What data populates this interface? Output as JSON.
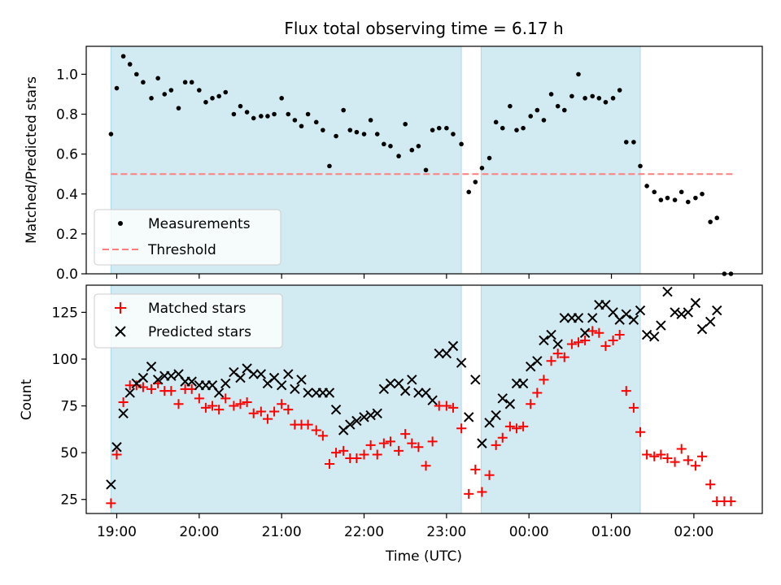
{
  "chart_data": [
    {
      "type": "scatter",
      "title": "Flux total observing time = 6.17 h",
      "xlabel": "",
      "ylabel": "Matched/Predicted stars",
      "ylim": [
        0,
        1.14
      ],
      "yticks": [
        "0.0",
        "0.2",
        "0.4",
        "0.6",
        "0.8",
        "1.0"
      ],
      "ytick_values": [
        0.0,
        0.2,
        0.4,
        0.6,
        0.8,
        1.0
      ],
      "xrange_hours": [
        18.63,
        26.83
      ],
      "shaded_spans_hours": [
        [
          18.93,
          23.18
        ],
        [
          23.42,
          25.35
        ]
      ],
      "threshold": 0.5,
      "threshold_range_hours": [
        18.93,
        26.47
      ],
      "legend": {
        "placement": "lower-left",
        "items": [
          "Measurements",
          "Threshold"
        ]
      },
      "colors": {
        "shade": "#add8e6",
        "measurements": "#000000",
        "threshold": "#ff7f7f"
      },
      "x": [
        18.93,
        19.0,
        19.08,
        19.16,
        19.24,
        19.32,
        19.42,
        19.5,
        19.58,
        19.66,
        19.75,
        19.83,
        19.91,
        20.0,
        20.08,
        20.16,
        20.24,
        20.32,
        20.42,
        20.5,
        20.58,
        20.66,
        20.75,
        20.83,
        20.91,
        21.0,
        21.08,
        21.16,
        21.24,
        21.32,
        21.42,
        21.5,
        21.58,
        21.66,
        21.75,
        21.83,
        21.91,
        22.0,
        22.08,
        22.16,
        22.24,
        22.32,
        22.42,
        22.5,
        22.58,
        22.66,
        22.75,
        22.83,
        22.91,
        23.0,
        23.08,
        23.18,
        23.27,
        23.35,
        23.43,
        23.52,
        23.6,
        23.68,
        23.77,
        23.85,
        23.93,
        24.02,
        24.1,
        24.18,
        24.27,
        24.35,
        24.43,
        24.52,
        24.6,
        24.68,
        24.77,
        24.85,
        24.93,
        25.02,
        25.1,
        25.18,
        25.27,
        25.35,
        25.43,
        25.52,
        25.6,
        25.68,
        25.77,
        25.85,
        25.93,
        26.02,
        26.1,
        26.2,
        26.28,
        26.37,
        26.45
      ],
      "values": [
        0.7,
        0.93,
        1.09,
        1.05,
        1.0,
        0.96,
        0.88,
        0.98,
        0.9,
        0.92,
        0.83,
        0.96,
        0.96,
        0.92,
        0.86,
        0.88,
        0.89,
        0.91,
        0.8,
        0.84,
        0.81,
        0.78,
        0.79,
        0.79,
        0.8,
        0.88,
        0.8,
        0.77,
        0.74,
        0.8,
        0.76,
        0.72,
        0.54,
        0.69,
        0.82,
        0.72,
        0.71,
        0.7,
        0.77,
        0.7,
        0.65,
        0.64,
        0.59,
        0.75,
        0.62,
        0.64,
        0.52,
        0.72,
        0.73,
        0.73,
        0.7,
        0.65,
        0.41,
        0.46,
        0.53,
        0.58,
        0.76,
        0.73,
        0.84,
        0.72,
        0.73,
        0.79,
        0.82,
        0.77,
        0.9,
        0.84,
        0.82,
        0.89,
        1.0,
        0.88,
        0.89,
        0.88,
        0.86,
        0.88,
        0.92,
        0.66,
        0.66,
        0.54,
        0.44,
        0.41,
        0.37,
        0.38,
        0.37,
        0.41,
        0.36,
        0.38,
        0.4,
        0.26,
        0.28,
        0.0,
        0.0
      ]
    },
    {
      "type": "scatter",
      "title": "",
      "xlabel": "Time (UTC)",
      "ylabel": "Count",
      "ylim": [
        17.5,
        139.5
      ],
      "yticks": [
        "25",
        "50",
        "75",
        "100",
        "125"
      ],
      "ytick_values": [
        25,
        50,
        75,
        100,
        125
      ],
      "xticks": [
        "19:00",
        "20:00",
        "21:00",
        "22:00",
        "23:00",
        "00:00",
        "01:00",
        "02:00"
      ],
      "xtick_hours": [
        19,
        20,
        21,
        22,
        23,
        24,
        25,
        26
      ],
      "xrange_hours": [
        18.63,
        26.83
      ],
      "shaded_spans_hours": [
        [
          18.93,
          23.18
        ],
        [
          23.42,
          25.35
        ]
      ],
      "legend": {
        "placement": "upper-left",
        "items": [
          "Matched stars",
          "Predicted stars"
        ]
      },
      "colors": {
        "shade": "#add8e6",
        "matched": "#ff0000",
        "predicted": "#000000"
      },
      "series": [
        {
          "name": "Matched stars",
          "x": [
            18.93,
            19.0,
            19.08,
            19.16,
            19.24,
            19.32,
            19.42,
            19.5,
            19.58,
            19.66,
            19.75,
            19.83,
            19.91,
            20.0,
            20.08,
            20.16,
            20.24,
            20.32,
            20.42,
            20.5,
            20.58,
            20.66,
            20.75,
            20.83,
            20.91,
            21.0,
            21.08,
            21.16,
            21.24,
            21.32,
            21.42,
            21.5,
            21.58,
            21.66,
            21.75,
            21.83,
            21.91,
            22.0,
            22.08,
            22.16,
            22.24,
            22.32,
            22.42,
            22.5,
            22.58,
            22.66,
            22.75,
            22.83,
            22.91,
            23.0,
            23.08,
            23.18,
            23.27,
            23.35,
            23.43,
            23.52,
            23.6,
            23.68,
            23.77,
            23.85,
            23.93,
            24.02,
            24.1,
            24.18,
            24.27,
            24.35,
            24.43,
            24.52,
            24.6,
            24.68,
            24.77,
            24.85,
            24.93,
            25.02,
            25.1,
            25.18,
            25.27,
            25.35,
            25.43,
            25.52,
            25.6,
            25.68,
            25.77,
            25.85,
            25.93,
            26.02,
            26.1,
            26.2,
            26.28,
            26.37,
            26.45
          ],
          "values": [
            23,
            49,
            77,
            86,
            86,
            85,
            84,
            87,
            83,
            83,
            76,
            84,
            84,
            79,
            74,
            75,
            73,
            79,
            75,
            76,
            77,
            71,
            72,
            68,
            72,
            76,
            73,
            65,
            65,
            65,
            62,
            59,
            44,
            50,
            51,
            47,
            47,
            49,
            54,
            49,
            55,
            56,
            51,
            60,
            55,
            53,
            43,
            56,
            75,
            75,
            74,
            63,
            28,
            41,
            29,
            38,
            54,
            58,
            64,
            63,
            64,
            76,
            82,
            89,
            99,
            103,
            101,
            108,
            109,
            110,
            115,
            114,
            107,
            110,
            113,
            83,
            74,
            61,
            49,
            48,
            49,
            47,
            45,
            52,
            46,
            43,
            48,
            33,
            24,
            24,
            24
          ]
        },
        {
          "name": "Predicted stars",
          "x": [
            18.93,
            19.0,
            19.08,
            19.16,
            19.24,
            19.32,
            19.42,
            19.5,
            19.58,
            19.66,
            19.75,
            19.83,
            19.91,
            20.0,
            20.08,
            20.16,
            20.24,
            20.32,
            20.42,
            20.5,
            20.58,
            20.66,
            20.75,
            20.83,
            20.91,
            21.0,
            21.08,
            21.16,
            21.24,
            21.32,
            21.42,
            21.5,
            21.58,
            21.66,
            21.75,
            21.83,
            21.91,
            22.0,
            22.08,
            22.16,
            22.24,
            22.32,
            22.42,
            22.5,
            22.58,
            22.66,
            22.75,
            22.83,
            22.91,
            23.0,
            23.08,
            23.18,
            23.27,
            23.35,
            23.43,
            23.52,
            23.6,
            23.68,
            23.77,
            23.85,
            23.93,
            24.02,
            24.1,
            24.18,
            24.27,
            24.35,
            24.43,
            24.52,
            24.6,
            24.68,
            24.77,
            24.85,
            24.93,
            25.02,
            25.1,
            25.18,
            25.27,
            25.35,
            25.43,
            25.52,
            25.6,
            25.68,
            25.77,
            25.85,
            25.93,
            26.02,
            26.1,
            26.2,
            26.28
          ],
          "values": [
            33,
            53,
            71,
            82,
            87,
            90,
            96,
            89,
            91,
            91,
            92,
            88,
            88,
            86,
            86,
            86,
            82,
            87,
            93,
            90,
            95,
            92,
            92,
            87,
            90,
            86,
            92,
            84,
            89,
            82,
            82,
            82,
            82,
            73,
            62,
            65,
            67,
            69,
            70,
            71,
            84,
            87,
            87,
            83,
            89,
            82,
            82,
            78,
            103,
            103,
            107,
            98,
            69,
            89,
            55,
            66,
            70,
            79,
            76,
            87,
            87,
            96,
            99,
            110,
            113,
            108,
            122,
            122,
            122,
            114,
            122,
            129,
            129,
            125,
            121,
            124,
            121,
            126,
            113,
            112,
            118,
            136,
            125,
            124,
            125,
            130,
            116,
            120,
            126
          ]
        }
      ]
    }
  ]
}
